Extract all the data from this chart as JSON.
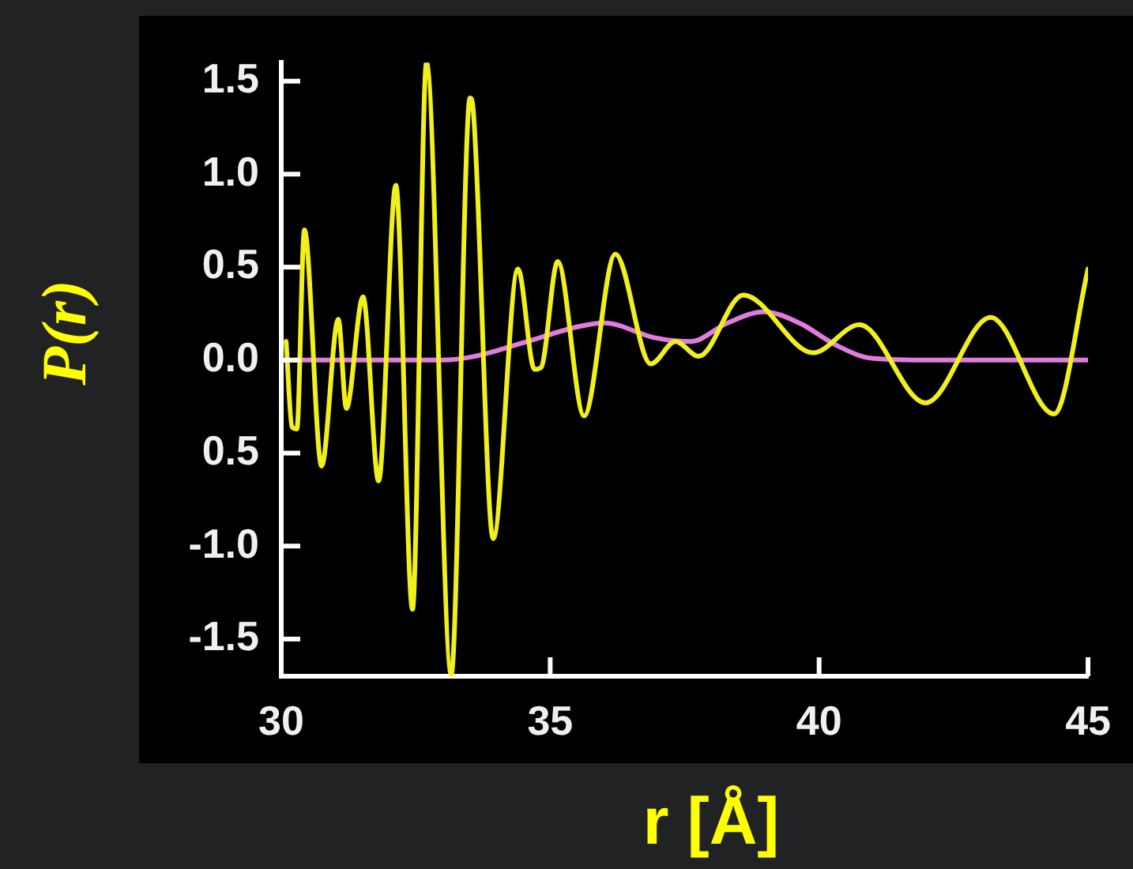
{
  "chart_data": {
    "type": "line",
    "xlabel": "r [Å]",
    "ylabel": "P(r)",
    "xlim": [
      30,
      45
    ],
    "xticks": [
      30,
      35,
      40,
      45
    ],
    "ylim": [
      -1.7,
      1.6
    ],
    "yticks": [
      1.5,
      {
        "value": 1,
        "label": "1.0"
      },
      0.5,
      {
        "value": 0,
        "label": "0.0"
      },
      {
        "value": -0.5,
        "label": "0.5"
      },
      {
        "value": -1,
        "label": "-1.0"
      },
      -1.5
    ],
    "marker": "none",
    "line_style": "solid",
    "series": [
      {
        "color": "#f2ef1f",
        "x": [
          30.09,
          30.2,
          30.29,
          30.43,
          30.75,
          31.06,
          31.21,
          31.52,
          31.81,
          32.13,
          32.44,
          32.7,
          33.16,
          33.51,
          33.56,
          33.94,
          34.4,
          34.71,
          34.83,
          35.14,
          35.63,
          36.21,
          36.87,
          37.33,
          37.76,
          38.59,
          39.89,
          40.75,
          41.98,
          43.19,
          44.37,
          45.0
        ],
        "values": [
          0.1,
          -0.36,
          -0.37,
          0.7,
          -0.57,
          0.22,
          -0.26,
          0.34,
          -0.65,
          0.94,
          -1.34,
          1.6,
          -1.69,
          1.41,
          1.37,
          -0.96,
          0.49,
          -0.05,
          -0.04,
          0.53,
          -0.3,
          0.57,
          -0.02,
          0.1,
          0.02,
          0.35,
          0.04,
          0.19,
          -0.23,
          0.23,
          -0.29,
          0.49
        ]
      },
      {
        "color": "#e07ce0",
        "x": [
          30.0,
          33.0,
          33.59,
          34.57,
          35.52,
          36.0,
          36.95,
          37.61,
          38.3,
          38.97,
          39.63,
          40.32,
          40.98,
          42.1,
          45.0
        ],
        "values": [
          0,
          0,
          0.02,
          0.1,
          0.18,
          0.2,
          0.12,
          0.1,
          0.2,
          0.26,
          0.2,
          0.08,
          0.01,
          0,
          0
        ]
      }
    ]
  }
}
